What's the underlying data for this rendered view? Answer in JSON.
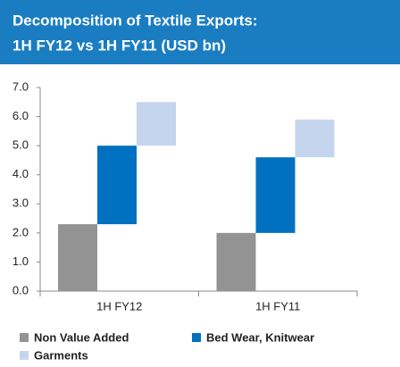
{
  "chart_data": {
    "type": "stacked_bar",
    "offset_segments": true,
    "title": [
      "Decomposition of Textile Exports:",
      "1H FY12 vs 1H FY11  (USD bn)"
    ],
    "categories": [
      "1H FY12",
      "1H FY11"
    ],
    "series": [
      {
        "name": "Non Value Added",
        "color": "#939393",
        "values": [
          2.3,
          2.0
        ]
      },
      {
        "name": "Bed Wear, Knitwear",
        "color": "#0070c0",
        "values": [
          2.7,
          2.6
        ]
      },
      {
        "name": "Garments",
        "color": "#c5d5ee",
        "values": [
          1.5,
          1.3
        ]
      }
    ],
    "ylim": [
      0,
      7
    ],
    "yticks": [
      {
        "value": 0,
        "label": "0.0"
      },
      {
        "value": 1,
        "label": "1.0"
      },
      {
        "value": 2,
        "label": "2.0"
      },
      {
        "value": 3,
        "label": "3.0"
      },
      {
        "value": 4,
        "label": "4.0"
      },
      {
        "value": 5,
        "label": "5.0"
      },
      {
        "value": 6,
        "label": "6.0"
      },
      {
        "value": 7,
        "label": "7.0"
      }
    ],
    "grid": false,
    "legend": "bottom"
  }
}
